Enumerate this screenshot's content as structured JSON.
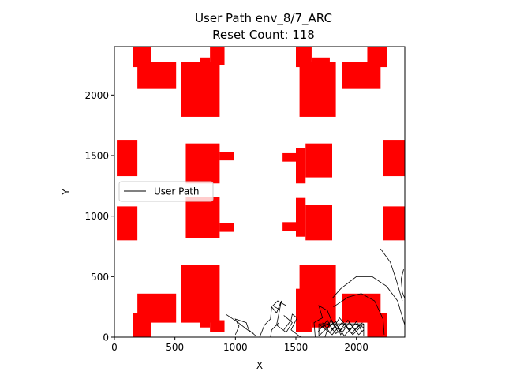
{
  "chart_data": {
    "type": "scatter",
    "title": "User Path env_8/7_ARC",
    "subtitle": "Reset Count: 118",
    "xlabel": "X",
    "ylabel": "Y",
    "xlim": [
      0,
      2400
    ],
    "ylim": [
      0,
      2400
    ],
    "xticks": [
      0,
      500,
      1000,
      1500,
      2000
    ],
    "yticks": [
      0,
      500,
      1000,
      1500,
      2000
    ],
    "grid": false,
    "legend": {
      "placement": "center-left",
      "entries": [
        "User Path"
      ]
    },
    "obstacle_color": "#ff0000",
    "path_color": "#000000",
    "obstacles": [
      {
        "x0": 150,
        "y0": 2230,
        "x1": 300,
        "y1": 2400
      },
      {
        "x0": 190,
        "y0": 2050,
        "x1": 510,
        "y1": 2270
      },
      {
        "x0": 550,
        "y0": 1820,
        "x1": 870,
        "y1": 2270
      },
      {
        "x0": 710,
        "y0": 2270,
        "x1": 790,
        "y1": 2310
      },
      {
        "x0": 790,
        "y0": 2250,
        "x1": 910,
        "y1": 2400
      },
      {
        "x0": 1500,
        "y0": 2230,
        "x1": 1630,
        "y1": 2400
      },
      {
        "x0": 1630,
        "y0": 2250,
        "x1": 1780,
        "y1": 2310
      },
      {
        "x0": 1530,
        "y0": 1820,
        "x1": 1830,
        "y1": 2270
      },
      {
        "x0": 1880,
        "y0": 2050,
        "x1": 2200,
        "y1": 2270
      },
      {
        "x0": 2090,
        "y0": 2230,
        "x1": 2250,
        "y1": 2400
      },
      {
        "x0": 20,
        "y0": 1330,
        "x1": 190,
        "y1": 1630
      },
      {
        "x0": 590,
        "y0": 1270,
        "x1": 870,
        "y1": 1600
      },
      {
        "x0": 870,
        "y0": 1460,
        "x1": 990,
        "y1": 1530
      },
      {
        "x0": 1390,
        "y0": 1450,
        "x1": 1500,
        "y1": 1520
      },
      {
        "x0": 1500,
        "y0": 1270,
        "x1": 1580,
        "y1": 1560
      },
      {
        "x0": 1580,
        "y0": 1320,
        "x1": 1800,
        "y1": 1600
      },
      {
        "x0": 2220,
        "y0": 1330,
        "x1": 2400,
        "y1": 1630
      },
      {
        "x0": 20,
        "y0": 800,
        "x1": 190,
        "y1": 1080
      },
      {
        "x0": 590,
        "y0": 820,
        "x1": 870,
        "y1": 1160
      },
      {
        "x0": 870,
        "y0": 870,
        "x1": 990,
        "y1": 940
      },
      {
        "x0": 1390,
        "y0": 880,
        "x1": 1500,
        "y1": 950
      },
      {
        "x0": 1500,
        "y0": 830,
        "x1": 1580,
        "y1": 1150
      },
      {
        "x0": 1580,
        "y0": 800,
        "x1": 1800,
        "y1": 1090
      },
      {
        "x0": 2220,
        "y0": 800,
        "x1": 2400,
        "y1": 1080
      },
      {
        "x0": 150,
        "y0": 0,
        "x1": 300,
        "y1": 200
      },
      {
        "x0": 190,
        "y0": 120,
        "x1": 510,
        "y1": 360
      },
      {
        "x0": 550,
        "y0": 120,
        "x1": 870,
        "y1": 600
      },
      {
        "x0": 710,
        "y0": 80,
        "x1": 790,
        "y1": 140
      },
      {
        "x0": 790,
        "y0": 40,
        "x1": 910,
        "y1": 140
      },
      {
        "x0": 1500,
        "y0": 40,
        "x1": 1630,
        "y1": 400
      },
      {
        "x0": 1630,
        "y0": 80,
        "x1": 1780,
        "y1": 140
      },
      {
        "x0": 1530,
        "y0": 120,
        "x1": 1830,
        "y1": 600
      },
      {
        "x0": 1880,
        "y0": 120,
        "x1": 2200,
        "y1": 360
      },
      {
        "x0": 2090,
        "y0": 0,
        "x1": 2250,
        "y1": 200
      }
    ],
    "paths": [
      {
        "type": "line",
        "points": [
          [
            2200,
            730
          ],
          [
            2280,
            620
          ],
          [
            2330,
            470
          ],
          [
            2380,
            300
          ]
        ]
      },
      {
        "type": "line",
        "points": [
          [
            2390,
            560
          ],
          [
            2370,
            480
          ],
          [
            2380,
            370
          ],
          [
            2400,
            320
          ]
        ]
      },
      {
        "type": "line",
        "points": [
          [
            1800,
            320
          ],
          [
            1870,
            400
          ],
          [
            2000,
            500
          ],
          [
            2130,
            500
          ],
          [
            2250,
            420
          ],
          [
            2340,
            300
          ],
          [
            2400,
            100
          ]
        ]
      },
      {
        "type": "line",
        "points": [
          [
            1810,
            250
          ],
          [
            1930,
            330
          ],
          [
            2040,
            360
          ],
          [
            2150,
            300
          ],
          [
            2220,
            150
          ],
          [
            2230,
            20
          ]
        ]
      },
      {
        "type": "line",
        "points": [
          [
            920,
            190
          ],
          [
            1010,
            130
          ],
          [
            1100,
            60
          ],
          [
            1150,
            30
          ]
        ]
      },
      {
        "type": "line",
        "points": [
          [
            1000,
            20
          ],
          [
            1030,
            90
          ],
          [
            1000,
            150
          ],
          [
            1090,
            120
          ],
          [
            1110,
            60
          ],
          [
            1170,
            10
          ]
        ]
      },
      {
        "type": "line",
        "points": [
          [
            1200,
            0
          ],
          [
            1240,
            100
          ],
          [
            1290,
            150
          ],
          [
            1300,
            250
          ],
          [
            1340,
            200
          ],
          [
            1380,
            300
          ],
          [
            1340,
            100
          ],
          [
            1420,
            40
          ],
          [
            1470,
            120
          ],
          [
            1400,
            180
          ]
        ]
      },
      {
        "type": "line",
        "points": [
          [
            1290,
            0
          ],
          [
            1300,
            60
          ],
          [
            1360,
            120
          ],
          [
            1360,
            230
          ],
          [
            1310,
            260
          ],
          [
            1350,
            300
          ],
          [
            1420,
            260
          ]
        ]
      },
      {
        "type": "line",
        "points": [
          [
            1400,
            60
          ],
          [
            1460,
            140
          ],
          [
            1470,
            190
          ],
          [
            1510,
            160
          ],
          [
            1460,
            60
          ],
          [
            1540,
            0
          ]
        ]
      },
      {
        "type": "line",
        "points": [
          [
            1660,
            0
          ],
          [
            1650,
            120
          ],
          [
            1720,
            160
          ],
          [
            1690,
            260
          ],
          [
            1760,
            220
          ],
          [
            1810,
            100
          ],
          [
            1880,
            40
          ]
        ]
      },
      {
        "type": "line",
        "points": [
          [
            1680,
            40
          ],
          [
            1760,
            140
          ],
          [
            1800,
            60
          ],
          [
            1860,
            160
          ],
          [
            1920,
            90
          ],
          [
            1960,
            30
          ],
          [
            2020,
            100
          ]
        ]
      },
      {
        "type": "line",
        "points": [
          [
            1700,
            100
          ],
          [
            1800,
            20
          ],
          [
            1880,
            120
          ],
          [
            1950,
            60
          ],
          [
            2000,
            130
          ],
          [
            2050,
            40
          ]
        ]
      },
      {
        "type": "line",
        "points": [
          [
            1720,
            120
          ],
          [
            1780,
            40
          ],
          [
            1840,
            100
          ],
          [
            1900,
            10
          ],
          [
            1990,
            110
          ],
          [
            2060,
            80
          ]
        ]
      },
      {
        "type": "line",
        "points": [
          [
            1690,
            70
          ],
          [
            1770,
            110
          ],
          [
            1830,
            30
          ],
          [
            1910,
            90
          ],
          [
            1970,
            20
          ],
          [
            2060,
            110
          ]
        ]
      },
      {
        "type": "line",
        "points": [
          [
            1690,
            10
          ],
          [
            1760,
            80
          ],
          [
            1830,
            130
          ],
          [
            1870,
            20
          ],
          [
            1940,
            120
          ],
          [
            2020,
            20
          ],
          [
            2060,
            60
          ]
        ]
      },
      {
        "type": "line",
        "points": [
          [
            1740,
            0
          ],
          [
            1790,
            150
          ],
          [
            1850,
            40
          ],
          [
            1930,
            140
          ],
          [
            1990,
            60
          ],
          [
            2050,
            120
          ]
        ]
      },
      {
        "type": "line",
        "points": [
          [
            1690,
            110
          ],
          [
            1810,
            110
          ],
          [
            1900,
            110
          ],
          [
            2060,
            110
          ]
        ]
      },
      {
        "type": "line",
        "points": [
          [
            1690,
            10
          ],
          [
            1820,
            10
          ],
          [
            1950,
            10
          ],
          [
            2060,
            10
          ]
        ]
      },
      {
        "type": "line",
        "points": [
          [
            1690,
            10
          ],
          [
            1690,
            110
          ]
        ]
      },
      {
        "type": "line",
        "points": [
          [
            2060,
            10
          ],
          [
            2060,
            110
          ]
        ]
      }
    ]
  }
}
